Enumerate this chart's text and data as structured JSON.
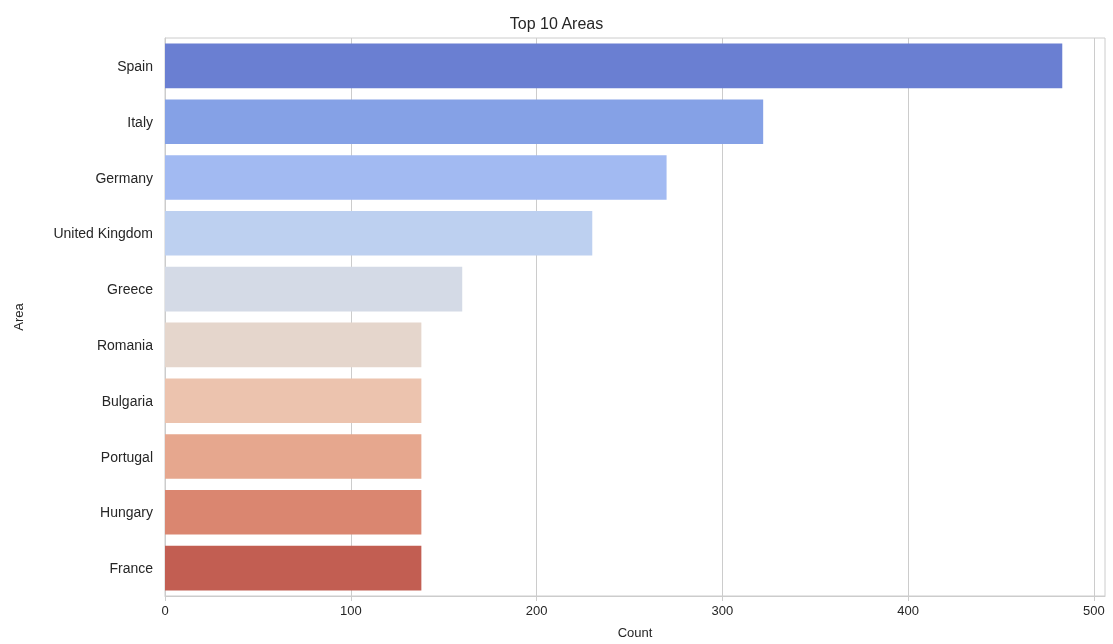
{
  "chart_data": {
    "type": "bar",
    "title": "Top 10 Areas",
    "xlabel": "Count",
    "ylabel": "Area",
    "orientation": "horizontal",
    "categories": [
      "Spain",
      "Italy",
      "Germany",
      "United Kingdom",
      "Greece",
      "Romania",
      "Bulgaria",
      "Portugal",
      "Hungary",
      "France"
    ],
    "values": [
      483,
      322,
      270,
      230,
      160,
      138,
      138,
      138,
      138,
      138
    ],
    "colors": [
      "#6a7fd2",
      "#85a1e6",
      "#a2baf2",
      "#bdd0f0",
      "#d4dae6",
      "#e5d6cc",
      "#ecc3ae",
      "#e6a78e",
      "#da8670",
      "#c25e52"
    ],
    "xlim": [
      0,
      506
    ],
    "xticks": [
      0,
      100,
      200,
      300,
      400,
      500
    ],
    "grid": "x"
  }
}
